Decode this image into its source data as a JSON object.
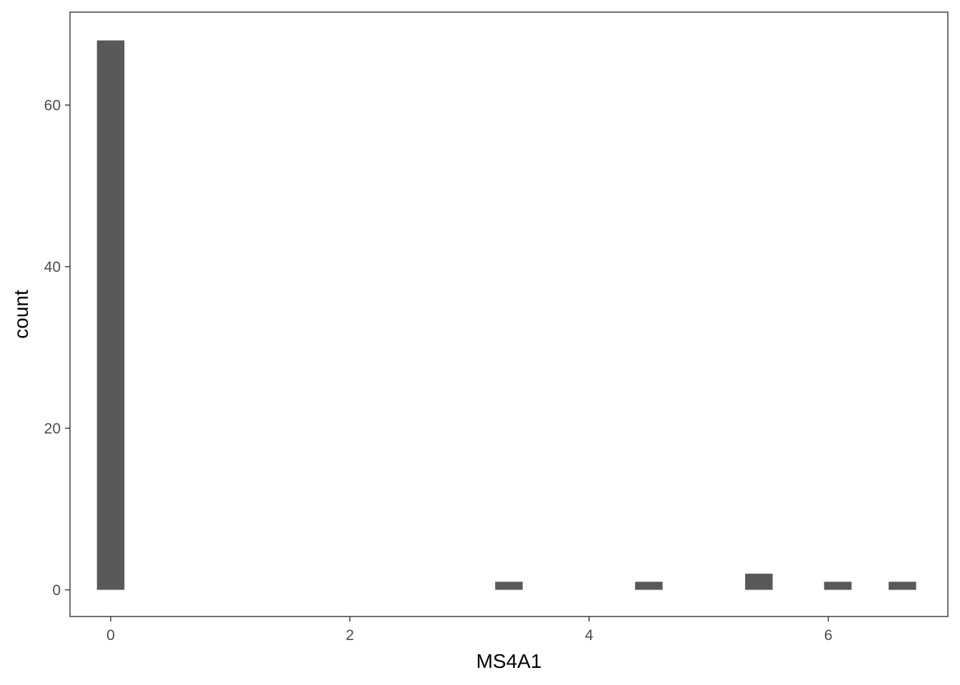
{
  "chart_data": {
    "type": "bar",
    "title": "",
    "xlabel": "MS4A1",
    "ylabel": "count",
    "xlim": [
      -0.34,
      7.0
    ],
    "ylim": [
      -3.3,
      71.5
    ],
    "x_ticks": [
      0,
      2,
      4,
      6
    ],
    "x_tick_labels": [
      "0",
      "2",
      "4",
      "6"
    ],
    "y_ticks": [
      0,
      20,
      40,
      60
    ],
    "y_tick_labels": [
      "0",
      "20",
      "40",
      "60"
    ],
    "bin_width": 0.23,
    "bins": [
      {
        "x": 0.0,
        "count": 68
      },
      {
        "x": 3.33,
        "count": 1
      },
      {
        "x": 4.5,
        "count": 1
      },
      {
        "x": 5.42,
        "count": 2
      },
      {
        "x": 6.08,
        "count": 1
      },
      {
        "x": 6.62,
        "count": 1
      }
    ],
    "bar_color": "#595959",
    "grid": false,
    "legend": "none"
  }
}
